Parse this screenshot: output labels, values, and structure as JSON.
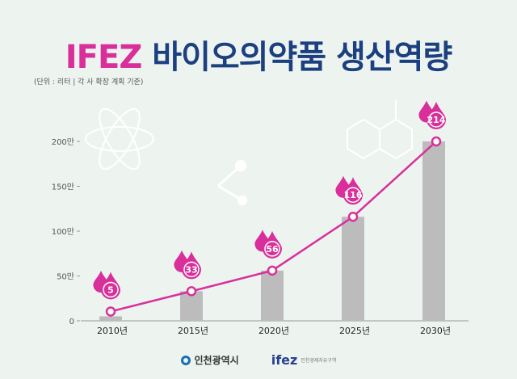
{
  "title": {
    "highlight": "IFEZ",
    "rest": "바이오의약품 생산역량"
  },
  "unit_note": "(단위 : 리터 | 각 사 확장 계획 기준)",
  "colors": {
    "accent": "#d92f9b",
    "navy": "#1c3f80",
    "bar": "#bcbcbc",
    "background": "#edf4f0"
  },
  "chart_data": {
    "type": "bar+line",
    "categories": [
      "2010년",
      "2015년",
      "2020년",
      "2025년",
      "2030년"
    ],
    "values": [
      5,
      33,
      56,
      116,
      214
    ],
    "data_labels": [
      "5",
      "33",
      "56",
      "116",
      "214"
    ],
    "yticks": [
      "0",
      "50만",
      "100만",
      "150만",
      "200만"
    ],
    "ytick_values": [
      0,
      50,
      100,
      150,
      200
    ],
    "ylim": [
      0,
      200
    ],
    "grid": false,
    "legend": "none"
  },
  "footer": {
    "logo1": "인천광역시",
    "logo2": "ifez",
    "logo2_sub": "인천경제자유구역"
  }
}
